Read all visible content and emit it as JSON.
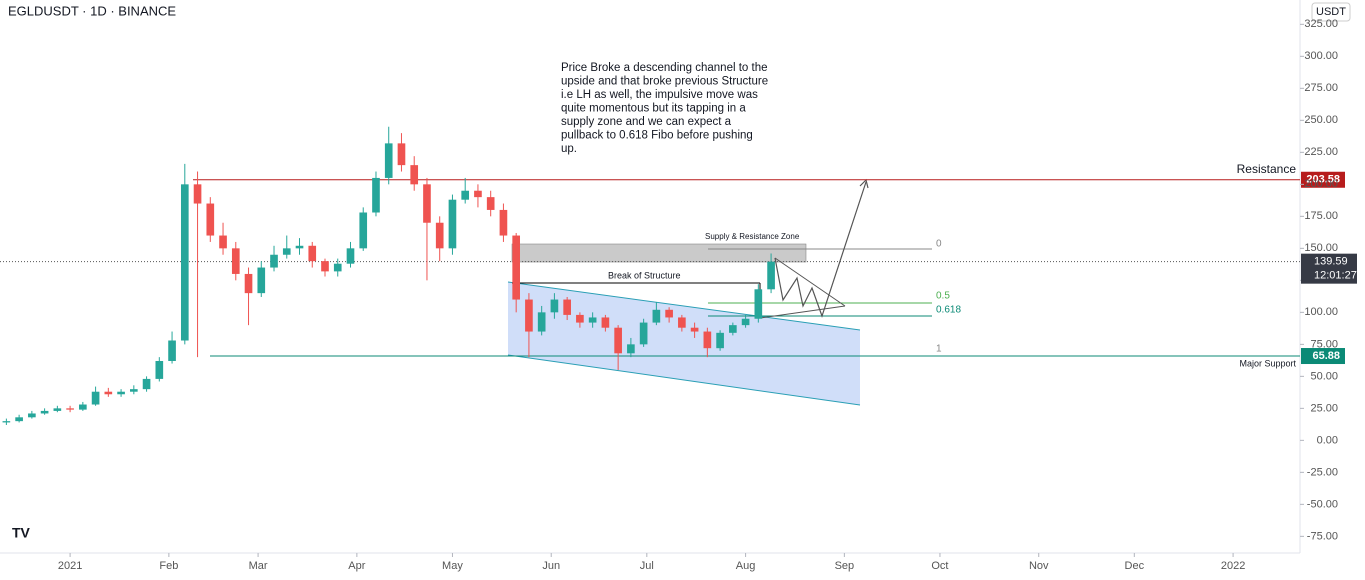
{
  "chart_data": {
    "type": "candlestick",
    "title": "EGLDUSDT · 1D · BINANCE",
    "currency": "USDT",
    "x": [
      -20,
      -16,
      -12,
      -8,
      -4,
      0,
      4,
      8,
      12,
      16,
      20,
      24,
      28,
      32,
      36,
      40,
      44,
      48,
      52,
      56,
      60,
      64,
      68,
      72,
      76,
      80,
      84,
      88,
      92,
      96,
      100,
      104,
      108,
      112,
      116,
      120,
      124,
      128,
      132,
      136,
      140,
      144,
      148,
      152,
      156,
      160,
      164,
      168,
      172,
      176,
      180,
      184,
      188,
      192,
      196,
      200,
      204,
      208,
      212,
      216,
      220
    ],
    "open": [
      14,
      15,
      18,
      21,
      23,
      25,
      24,
      28,
      38,
      36,
      38,
      40,
      48,
      62,
      78,
      200,
      185,
      160,
      150,
      130,
      115,
      135,
      145,
      150,
      152,
      140,
      132,
      138,
      150,
      178,
      205,
      232,
      215,
      200,
      170,
      150,
      188,
      195,
      190,
      180,
      160,
      110,
      85,
      100,
      110,
      98,
      92,
      96,
      88,
      68,
      75,
      92,
      102,
      96,
      88,
      85,
      72,
      84,
      90,
      95,
      118
    ],
    "high": [
      17,
      20,
      23,
      25,
      27,
      27,
      30,
      42,
      41,
      40,
      43,
      50,
      65,
      85,
      216,
      210,
      190,
      170,
      155,
      135,
      140,
      152,
      160,
      158,
      155,
      142,
      142,
      155,
      182,
      210,
      245,
      240,
      222,
      205,
      175,
      192,
      205,
      200,
      195,
      185,
      162,
      115,
      105,
      115,
      112,
      100,
      100,
      98,
      90,
      80,
      95,
      108,
      104,
      98,
      92,
      88,
      86,
      92,
      98,
      122,
      146
    ],
    "low": [
      12,
      14,
      17,
      20,
      22,
      22,
      23,
      27,
      34,
      34,
      36,
      38,
      46,
      60,
      75,
      65,
      155,
      145,
      125,
      90,
      112,
      132,
      142,
      145,
      135,
      128,
      128,
      135,
      148,
      175,
      200,
      210,
      195,
      125,
      140,
      145,
      185,
      182,
      175,
      155,
      100,
      65,
      82,
      95,
      94,
      88,
      88,
      85,
      55,
      65,
      73,
      90,
      92,
      85,
      80,
      65,
      70,
      82,
      88,
      92,
      115
    ],
    "close": [
      15,
      18,
      21,
      23,
      25,
      24,
      28,
      38,
      36,
      38,
      40,
      48,
      62,
      78,
      200,
      185,
      160,
      150,
      130,
      115,
      135,
      145,
      150,
      152,
      140,
      132,
      138,
      150,
      178,
      205,
      232,
      215,
      200,
      170,
      150,
      188,
      195,
      190,
      180,
      160,
      110,
      85,
      100,
      110,
      98,
      92,
      96,
      88,
      68,
      75,
      92,
      102,
      96,
      88,
      85,
      72,
      84,
      90,
      95,
      118,
      139.59
    ],
    "up_color": "#26a69a",
    "down_color": "#ef5350",
    "xlim": [
      -22,
      386
    ],
    "ylim": [
      -88,
      344
    ],
    "xticks": [
      {
        "value": 0,
        "label": "2021"
      },
      {
        "value": 31,
        "label": "Feb"
      },
      {
        "value": 59,
        "label": "Mar"
      },
      {
        "value": 90,
        "label": "Apr"
      },
      {
        "value": 120,
        "label": "May"
      },
      {
        "value": 151,
        "label": "Jun"
      },
      {
        "value": 181,
        "label": "Jul"
      },
      {
        "value": 212,
        "label": "Aug"
      },
      {
        "value": 243,
        "label": "Sep"
      },
      {
        "value": 273,
        "label": "Oct"
      },
      {
        "value": 304,
        "label": "Nov"
      },
      {
        "value": 334,
        "label": "Dec"
      },
      {
        "value": 365,
        "label": "2022"
      }
    ],
    "yticks": [
      {
        "value": -75,
        "label": "-75.00"
      },
      {
        "value": -50,
        "label": "-50.00"
      },
      {
        "value": -25,
        "label": "-25.00"
      },
      {
        "value": 0,
        "label": "0.00"
      },
      {
        "value": 25,
        "label": "25.00"
      },
      {
        "value": 50,
        "label": "50.00"
      },
      {
        "value": 75,
        "label": "75.00"
      },
      {
        "value": 100,
        "label": "100.00"
      },
      {
        "value": 125,
        "label": "125.00"
      },
      {
        "value": 150,
        "label": "150.00"
      },
      {
        "value": 175,
        "label": "175.00"
      },
      {
        "value": 200,
        "label": "200.00"
      },
      {
        "value": 225,
        "label": "225.00"
      },
      {
        "value": 250,
        "label": "250.00"
      },
      {
        "value": 275,
        "label": "275.00"
      },
      {
        "value": 300,
        "label": "300.00"
      },
      {
        "value": 325,
        "label": "325.00"
      }
    ],
    "levels": [
      {
        "name": "Resistance",
        "value": 203.58,
        "color": "#b71c1c"
      },
      {
        "name": "Major Support",
        "value": 65.88,
        "color": "#0b8a76"
      }
    ],
    "last_price": {
      "value": 139.59,
      "countdown": "12:01:27",
      "color": "#363a45"
    },
    "note": [
      "Price Broke a descending channel to the",
      "upside and that broke previous Structure",
      "i.e LH as well, the impulsive move was",
      "quite momentous but its tapping in a",
      "supply zone and we can expect a",
      "pullback to 0.618 Fibo before pushing",
      "up."
    ],
    "supply_zone": "Supply & Resistance Zone",
    "break_of_structure": "Break of Structure",
    "fib": [
      "0",
      "0.5",
      "0.618",
      "1"
    ]
  }
}
